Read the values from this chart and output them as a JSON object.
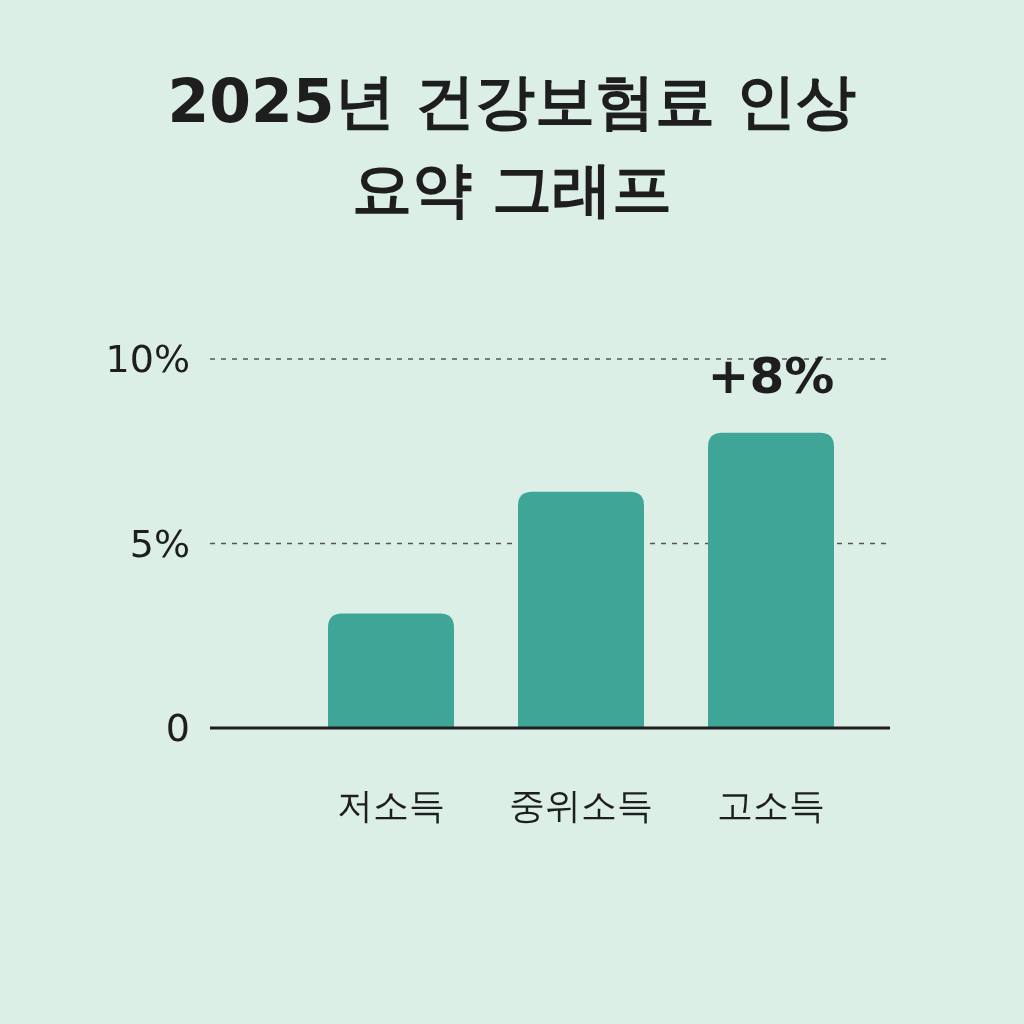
{
  "chart_data": {
    "type": "bar",
    "title": "2025년 건강보험료 인상 요약 그래프",
    "categories": [
      "저소득",
      "중위소득",
      "고소득"
    ],
    "values": [
      3.1,
      6.4,
      8
    ],
    "value_labels": [
      null,
      null,
      "+8%"
    ],
    "color": "#3fa597",
    "ylim": [
      0,
      10
    ],
    "yticks": [
      {
        "value": 0,
        "label": "0"
      },
      {
        "value": 5,
        "label": "5%"
      },
      {
        "value": 10,
        "label": "10%"
      }
    ],
    "grid": "y"
  }
}
